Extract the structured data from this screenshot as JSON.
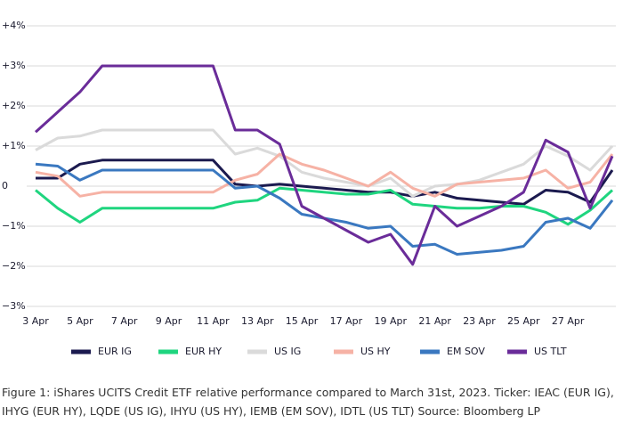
{
  "chart_data": {
    "type": "line",
    "categories": [
      "3 Apr",
      null,
      "5 Apr",
      null,
      "7 Apr",
      null,
      "9 Apr",
      null,
      "11 Apr",
      null,
      "13 Apr",
      null,
      "15 Apr",
      null,
      "17 Apr",
      null,
      "19 Apr",
      null,
      "21 Apr",
      null,
      "23 Apr",
      null,
      "25 Apr",
      null,
      "27 Apr",
      null,
      null
    ],
    "ylim": [
      -3,
      4
    ],
    "yticks": [
      {
        "value": 4,
        "label": "+4%"
      },
      {
        "value": 3,
        "label": "+3%"
      },
      {
        "value": 2,
        "label": "+2%"
      },
      {
        "value": 1,
        "label": "+1%"
      },
      0,
      {
        "value": -1,
        "label": "−1%"
      },
      {
        "value": -2,
        "label": "−2%"
      },
      {
        "value": -3,
        "label": "−3%"
      }
    ],
    "grid": true,
    "legend": "bottom",
    "series": [
      {
        "name": "EUR IG",
        "color": "#1b1a4f",
        "values": [
          0.2,
          0.2,
          0.55,
          0.65,
          0.65,
          0.65,
          0.65,
          0.65,
          0.65,
          0.05,
          0.0,
          0.05,
          0.0,
          -0.05,
          -0.1,
          -0.15,
          -0.15,
          -0.25,
          -0.15,
          -0.3,
          -0.35,
          -0.4,
          -0.45,
          -0.1,
          -0.15,
          -0.4,
          0.4
        ]
      },
      {
        "name": "EUR HY",
        "color": "#1fd57f",
        "values": [
          -0.1,
          -0.55,
          -0.9,
          -0.55,
          -0.55,
          -0.55,
          -0.55,
          -0.55,
          -0.55,
          -0.4,
          -0.35,
          -0.05,
          -0.1,
          -0.15,
          -0.2,
          -0.2,
          -0.1,
          -0.45,
          -0.5,
          -0.55,
          -0.55,
          -0.5,
          -0.5,
          -0.65,
          -0.95,
          -0.6,
          -0.1
        ]
      },
      {
        "name": "US IG",
        "color": "#dadada",
        "values": [
          0.9,
          1.2,
          1.25,
          1.4,
          1.4,
          1.4,
          1.4,
          1.4,
          1.4,
          0.8,
          0.95,
          0.75,
          0.35,
          0.2,
          0.1,
          0.0,
          0.2,
          -0.25,
          0.0,
          0.05,
          0.15,
          0.35,
          0.55,
          1.0,
          0.75,
          0.4,
          1.0
        ]
      },
      {
        "name": "US HY",
        "color": "#f6b2a5",
        "values": [
          0.35,
          0.25,
          -0.25,
          -0.15,
          -0.15,
          -0.15,
          -0.15,
          -0.15,
          -0.15,
          0.15,
          0.3,
          0.8,
          0.55,
          0.4,
          0.2,
          0.0,
          0.35,
          -0.05,
          -0.25,
          0.05,
          0.1,
          0.15,
          0.2,
          0.4,
          -0.05,
          0.1,
          0.8
        ]
      },
      {
        "name": "EM SOV",
        "color": "#3a78c0",
        "values": [
          0.55,
          0.5,
          0.15,
          0.4,
          0.4,
          0.4,
          0.4,
          0.4,
          0.4,
          -0.05,
          0.0,
          -0.3,
          -0.7,
          -0.8,
          -0.9,
          -1.05,
          -1.0,
          -1.5,
          -1.45,
          -1.7,
          -1.65,
          -1.6,
          -1.5,
          -0.9,
          -0.8,
          -1.05,
          -0.35
        ]
      },
      {
        "name": "US TLT",
        "color": "#6a2c99",
        "values": [
          1.35,
          1.85,
          2.35,
          3.0,
          3.0,
          3.0,
          3.0,
          3.0,
          3.0,
          1.4,
          1.4,
          1.05,
          -0.5,
          -0.8,
          -1.1,
          -1.4,
          -1.2,
          -1.95,
          -0.5,
          -1.0,
          -0.75,
          -0.5,
          -0.15,
          1.15,
          0.85,
          -0.55,
          0.75
        ]
      }
    ],
    "caption": "Figure 1: iShares UCITS Credit ETF relative performance compared to March 31st, 2023. Ticker: IEAC (EUR IG), IHYG (EUR HY), LQDE (US IG), IHYU (US HY), IEMB (EM SOV), IDTL (US TLT) Source: Bloomberg LP"
  }
}
